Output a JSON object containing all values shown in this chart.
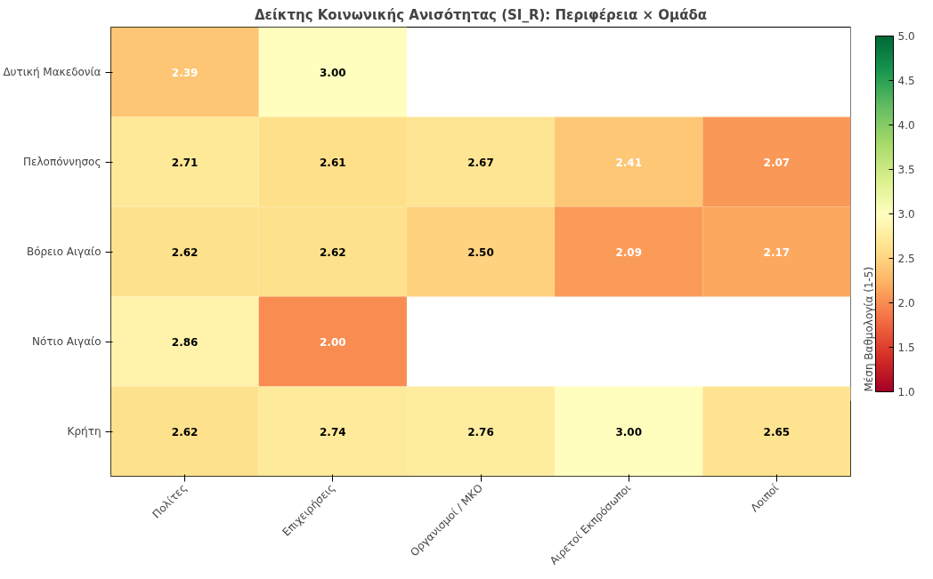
{
  "chart_data": {
    "type": "heatmap",
    "title": "Δείκτης Κοινωνικής Ανισότητας (SI_R): Περιφέρεια × Ομάδα",
    "categories": [
      "Πολίτες",
      "Επιχειρήσεις",
      "Οργανισμοί / ΜΚΟ",
      "Αιρετοί Εκπρόσωποι",
      "Λοιποί"
    ],
    "y_categories": [
      "Δυτική Μακεδονία",
      "Πελοπόννησος",
      "Βόρειο Αιγαίο",
      "Νότιο Αιγαίο",
      "Κρήτη"
    ],
    "cells": [
      [
        2.39,
        3.0,
        null,
        null,
        null
      ],
      [
        2.71,
        2.61,
        2.67,
        2.41,
        2.07
      ],
      [
        2.62,
        2.62,
        2.5,
        2.09,
        2.17
      ],
      [
        2.86,
        2.0,
        null,
        null,
        null
      ],
      [
        2.62,
        2.74,
        2.76,
        3.0,
        2.65
      ]
    ],
    "cell_labels": [
      [
        "2.39",
        "3.00",
        null,
        null,
        null
      ],
      [
        "2.71",
        "2.61",
        "2.67",
        "2.41",
        "2.07"
      ],
      [
        "2.62",
        "2.62",
        "2.50",
        "2.09",
        "2.17"
      ],
      [
        "2.86",
        "2.00",
        null,
        null,
        null
      ],
      [
        "2.62",
        "2.74",
        "2.76",
        "3.00",
        "2.65"
      ]
    ],
    "clabel": "Μέση Βαθμολογία (1-5)",
    "clim": [
      1.0,
      5.0
    ],
    "cticks": [
      {
        "value": 1.0,
        "label": "1.0"
      },
      {
        "value": 1.5,
        "label": "1.5"
      },
      {
        "value": 2.0,
        "label": "2.0"
      },
      {
        "value": 2.5,
        "label": "2.5"
      },
      {
        "value": 3.0,
        "label": "3.0"
      },
      {
        "value": 3.5,
        "label": "3.5"
      },
      {
        "value": 4.0,
        "label": "4.0"
      },
      {
        "value": 4.5,
        "label": "4.5"
      },
      {
        "value": 5.0,
        "label": "5.0"
      }
    ]
  }
}
